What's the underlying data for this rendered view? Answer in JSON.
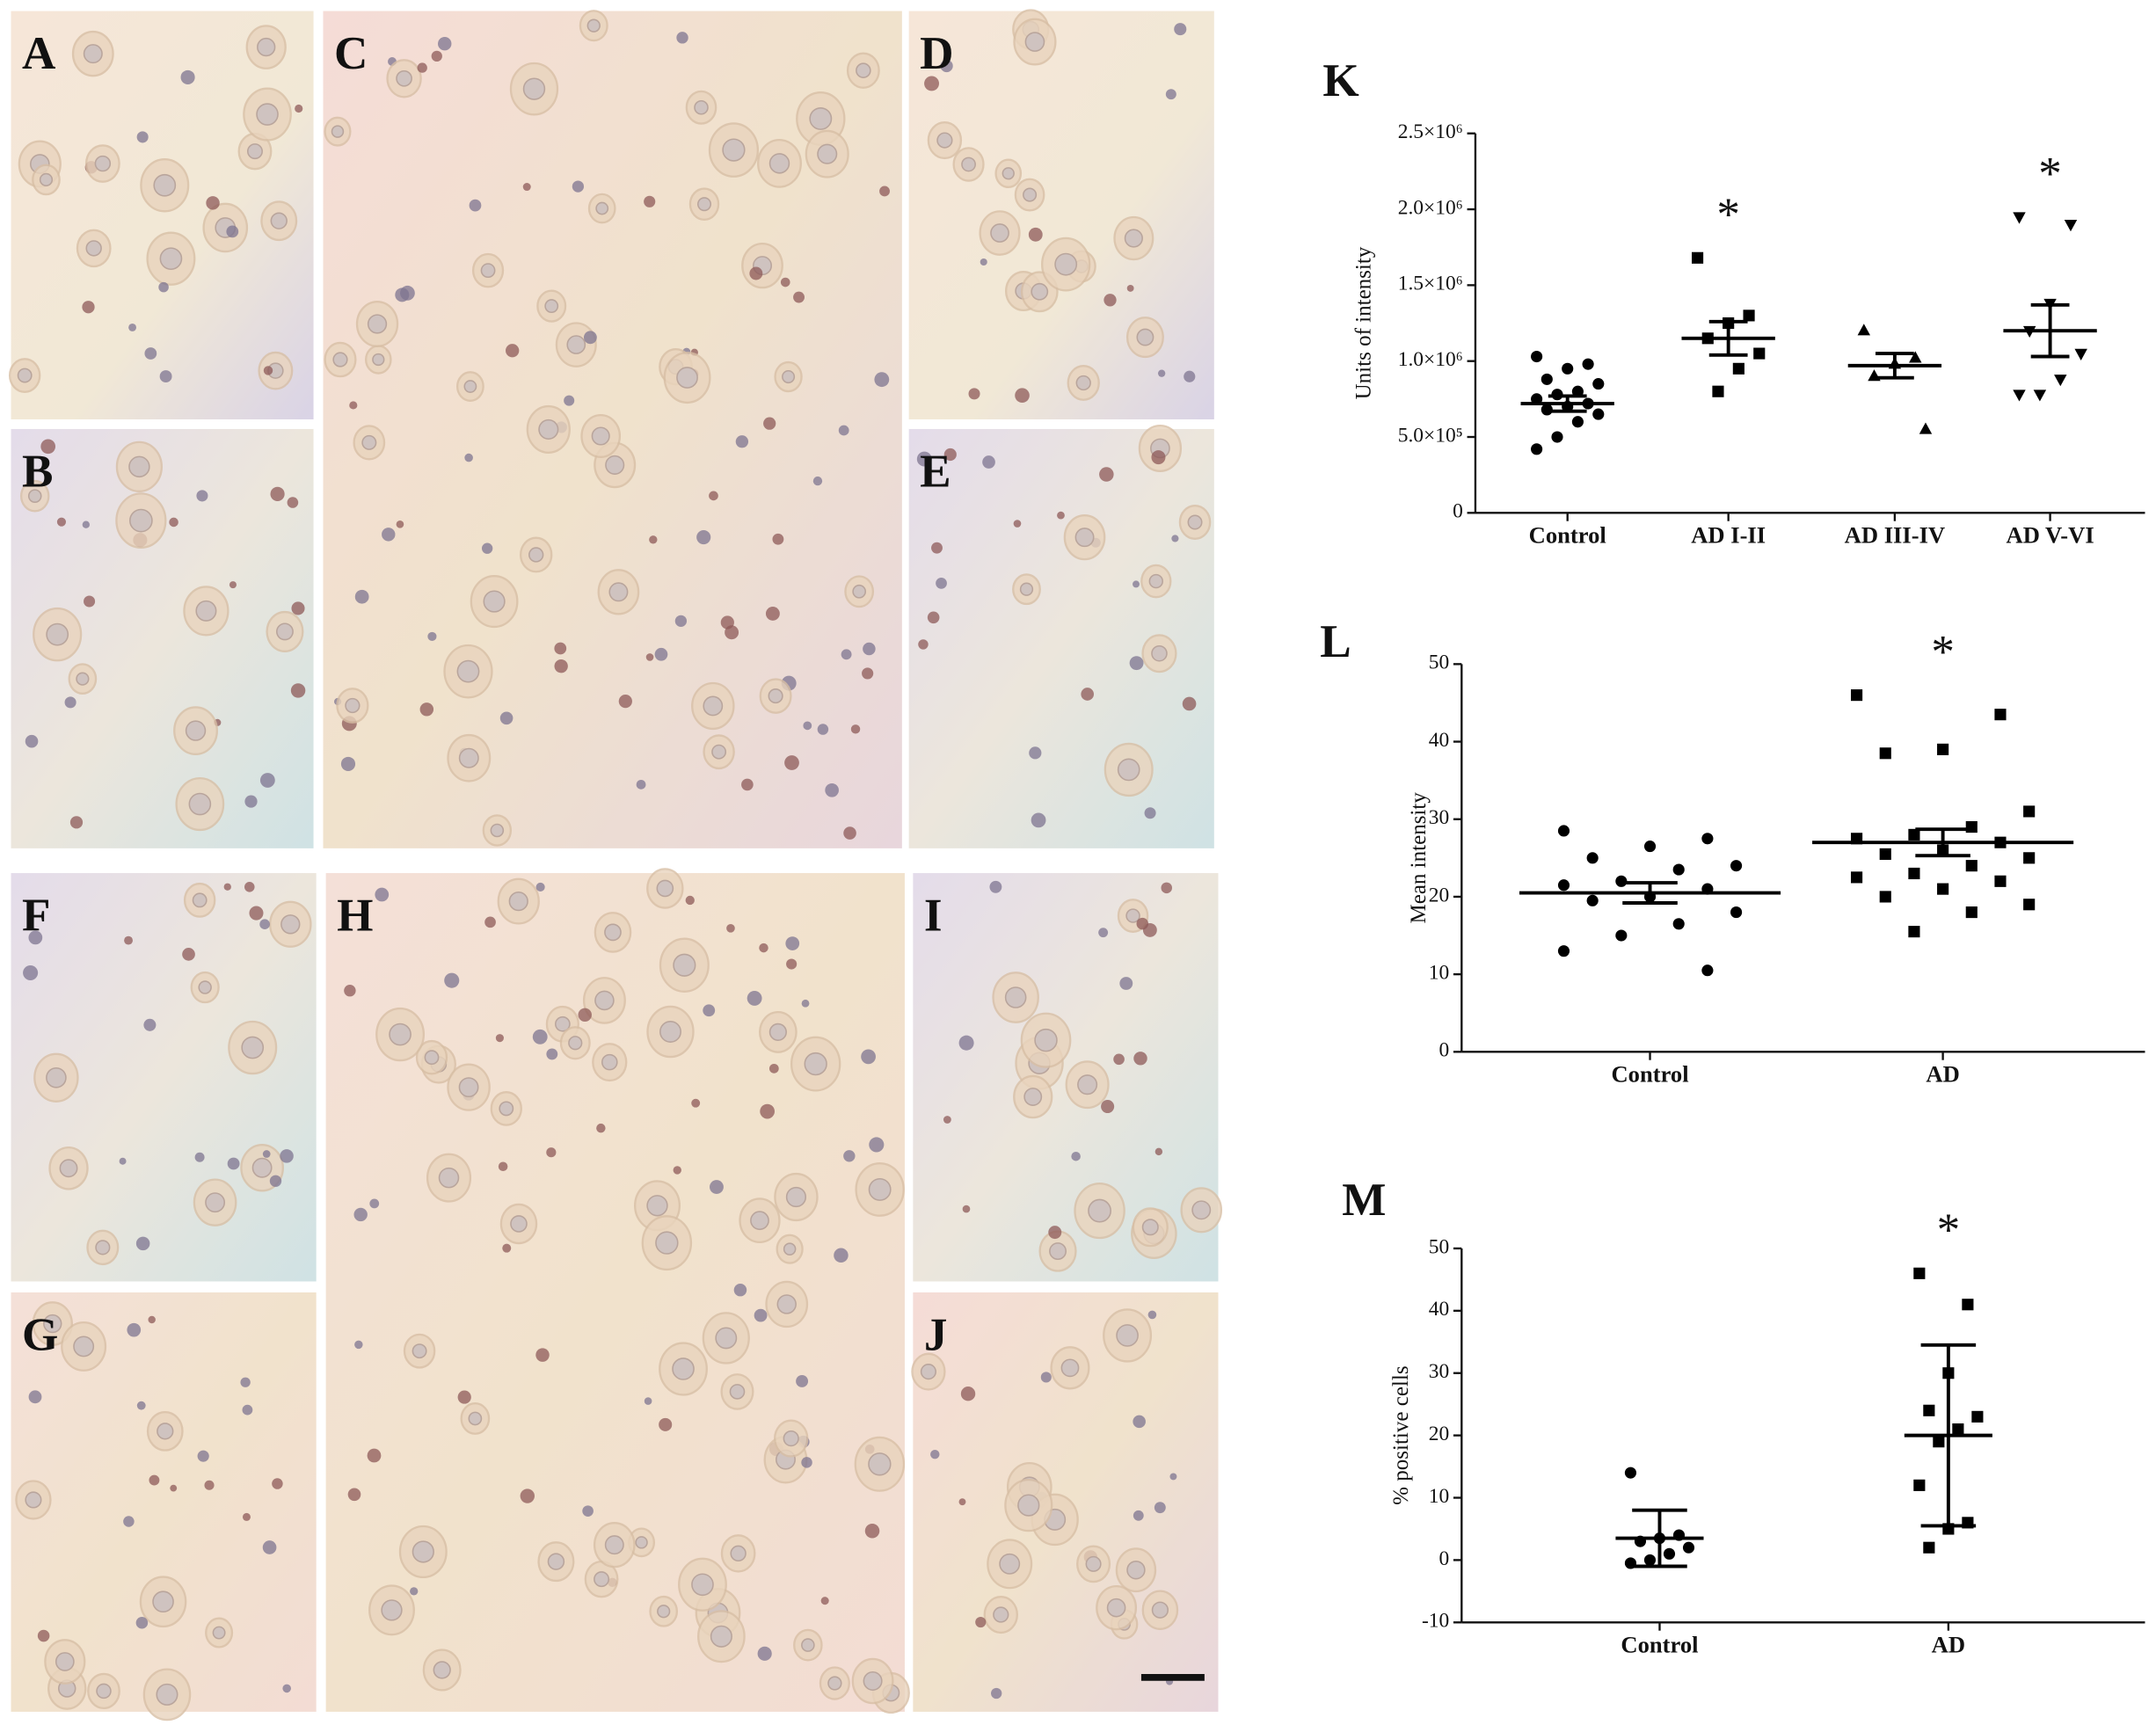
{
  "panels": [
    "A",
    "B",
    "C",
    "D",
    "E",
    "F",
    "G",
    "H",
    "I",
    "J"
  ],
  "chart_data": [
    {
      "type": "strip",
      "title": "K",
      "ylabel": "Units of intensity",
      "color": "#000000",
      "ylim": [
        0,
        2500000
      ],
      "yticks": [
        0,
        {
          "value": 500000,
          "label": "5.0×10⁵"
        },
        {
          "value": 1000000,
          "label": "1.0×10⁶"
        },
        {
          "value": 1500000,
          "label": "1.5×10⁶"
        },
        {
          "value": 2000000,
          "label": "2.0×10⁶"
        },
        {
          "value": 2500000,
          "label": "2.5×10⁶"
        }
      ],
      "groups": [
        {
          "name": "Control",
          "marker": "circle",
          "mean": 720000,
          "error": 50000,
          "values": [
            1030000,
            980000,
            950000,
            880000,
            850000,
            800000,
            780000,
            750000,
            720000,
            700000,
            680000,
            650000,
            600000,
            500000,
            420000
          ]
        },
        {
          "name": "AD I-II",
          "marker": "square",
          "mean": 1150000,
          "error": 110000,
          "annotation": "*",
          "values": [
            1680000,
            1300000,
            1250000,
            1150000,
            1050000,
            950000,
            800000
          ]
        },
        {
          "name": "AD III-IV",
          "marker": "triangle",
          "mean": 970000,
          "error": 80000,
          "values": [
            1200000,
            1020000,
            980000,
            900000,
            550000
          ]
        },
        {
          "name": "AD V-VI",
          "marker": "triangle-down",
          "mean": 1200000,
          "error": 170000,
          "annotation": "*",
          "values": [
            1950000,
            1900000,
            1380000,
            1200000,
            1050000,
            880000,
            780000,
            780000
          ]
        }
      ]
    },
    {
      "type": "strip",
      "title": "L",
      "ylabel": "Mean intensity",
      "color": "#000000",
      "ylim": [
        0,
        50
      ],
      "yticks": [
        0,
        10,
        20,
        30,
        40,
        50
      ],
      "groups": [
        {
          "name": "Control",
          "marker": "circle",
          "mean": 20.5,
          "error": 1.3,
          "values": [
            28.5,
            27.5,
            26.5,
            25,
            24,
            23.5,
            22,
            21.5,
            21,
            20,
            19.5,
            18,
            16.5,
            15,
            13,
            10.5
          ]
        },
        {
          "name": "AD",
          "marker": "square",
          "mean": 27,
          "error": 1.7,
          "annotation": "*",
          "values": [
            46,
            43.5,
            39,
            38.5,
            31,
            29,
            28,
            27.5,
            27,
            26,
            25.5,
            25,
            24,
            23,
            22.5,
            22,
            21,
            20,
            19,
            18,
            15.5
          ]
        }
      ]
    },
    {
      "type": "strip",
      "title": "M",
      "ylabel": "% positive cells",
      "color": "#000000",
      "ylim": [
        -10,
        50
      ],
      "yticks": [
        -10,
        0,
        10,
        20,
        30,
        40,
        50
      ],
      "groups": [
        {
          "name": "Control",
          "marker": "circle",
          "mean": 3.5,
          "error": 4.5,
          "values": [
            14,
            4,
            3.5,
            3,
            2,
            1,
            0,
            -0.5
          ]
        },
        {
          "name": "AD",
          "marker": "square",
          "mean": 20,
          "error": 14.5,
          "annotation": "*",
          "values": [
            46,
            41,
            30,
            24,
            23,
            21,
            19,
            12,
            6,
            5,
            2
          ]
        }
      ]
    }
  ]
}
